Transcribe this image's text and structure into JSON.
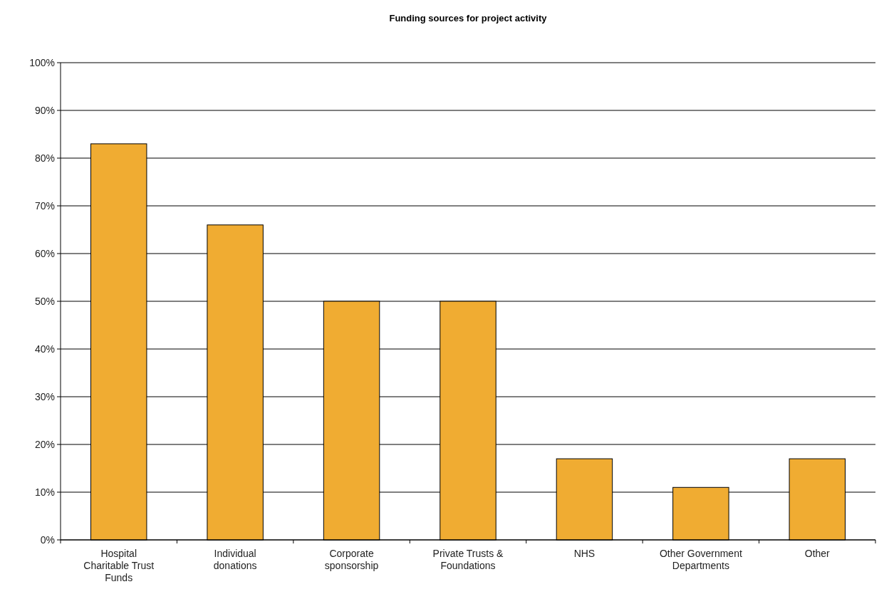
{
  "chart_data": {
    "type": "bar",
    "title": "Funding sources for project activity",
    "categories": [
      "Hospital Charitable Trust Funds",
      "Individual donations",
      "Corporate sponsorship",
      "Private Trusts & Foundations",
      "NHS",
      "Other Government Departments",
      "Other"
    ],
    "values": [
      83,
      66,
      50,
      50,
      17,
      11,
      17
    ],
    "color": "#f0ac32",
    "ylim": [
      0,
      100
    ],
    "yticks": [
      {
        "value": 0,
        "label": "0%"
      },
      {
        "value": 10,
        "label": "10%"
      },
      {
        "value": 20,
        "label": "20%"
      },
      {
        "value": 30,
        "label": "30%"
      },
      {
        "value": 40,
        "label": "40%"
      },
      {
        "value": 50,
        "label": "50%"
      },
      {
        "value": 60,
        "label": "60%"
      },
      {
        "value": 70,
        "label": "70%"
      },
      {
        "value": 80,
        "label": "80%"
      },
      {
        "value": 90,
        "label": "90%"
      },
      {
        "value": 100,
        "label": "100%"
      }
    ],
    "grid": "y"
  }
}
